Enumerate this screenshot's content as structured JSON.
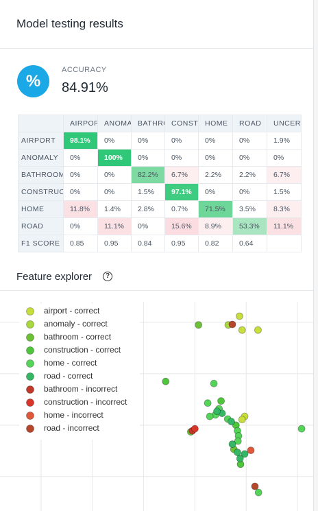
{
  "header": {
    "title": "Model testing results"
  },
  "accuracy": {
    "icon": "%",
    "label": "ACCURACY",
    "value": "84.91%"
  },
  "table": {
    "columns": [
      "AIRPORT",
      "ANOMALY",
      "BATHROOM",
      "CONSTRUCTION",
      "HOME",
      "ROAD",
      "UNCERTAIN"
    ],
    "rows": [
      {
        "label": "AIRPORT",
        "cells": [
          "98.1%",
          "0%",
          "0%",
          "0%",
          "0%",
          "0%",
          "1.9%"
        ]
      },
      {
        "label": "ANOMALY",
        "cells": [
          "0%",
          "100%",
          "0%",
          "0%",
          "0%",
          "0%",
          "0%"
        ]
      },
      {
        "label": "BATHROOM",
        "cells": [
          "0%",
          "0%",
          "82.2%",
          "6.7%",
          "2.2%",
          "2.2%",
          "6.7%"
        ]
      },
      {
        "label": "CONSTRUCTION",
        "cells": [
          "0%",
          "0%",
          "1.5%",
          "97.1%",
          "0%",
          "0%",
          "1.5%"
        ]
      },
      {
        "label": "HOME",
        "cells": [
          "11.8%",
          "1.4%",
          "2.8%",
          "0.7%",
          "71.5%",
          "3.5%",
          "8.3%"
        ]
      },
      {
        "label": "ROAD",
        "cells": [
          "0%",
          "11.1%",
          "0%",
          "15.6%",
          "8.9%",
          "53.3%",
          "11.1%"
        ]
      },
      {
        "label": "F1 SCORE",
        "cells": [
          "0.85",
          "0.95",
          "0.84",
          "0.95",
          "0.82",
          "0.64"
        ]
      }
    ]
  },
  "feature_explorer": {
    "title": "Feature explorer",
    "help_icon": "?"
  },
  "chart_data": {
    "type": "scatter",
    "xlim": [
      -0.8,
      5.4
    ],
    "ylim": [
      -0.67,
      3.6
    ],
    "xticks": [
      0,
      1,
      2,
      3,
      4,
      5
    ],
    "yticks": [
      0,
      1,
      2,
      3
    ],
    "grid": true,
    "series": [
      {
        "name": "airport - correct",
        "color": "#c8de3a",
        "x": [
          3.87,
          3.92,
          4.23,
          3.97,
          3.92
        ],
        "values": [
          3.12,
          2.85,
          2.85,
          1.17,
          1.11
        ]
      },
      {
        "name": "anomaly - correct",
        "color": "#a9d83c",
        "x": [
          3.65
        ],
        "values": [
          2.95
        ]
      },
      {
        "name": "bathroom - correct",
        "color": "#6cc234",
        "x": [
          3.07,
          3.76,
          2.92
        ],
        "values": [
          2.95,
          0.53,
          0.87
        ]
      },
      {
        "name": "construction - correct",
        "color": "#4fc53c",
        "x": [
          2.43,
          3.51,
          3.8,
          3.89
        ],
        "values": [
          1.85,
          1.47,
          1.0,
          0.24
        ]
      },
      {
        "name": "home - correct",
        "color": "#55d45a",
        "x": [
          3.37,
          3.25,
          3.47,
          3.4,
          3.29,
          3.64,
          3.83,
          3.85,
          3.84,
          5.08,
          4.24
        ],
        "values": [
          1.81,
          1.43,
          1.32,
          1.2,
          1.17,
          1.12,
          0.89,
          0.79,
          0.69,
          0.93,
          -0.31
        ]
      },
      {
        "name": "road - correct",
        "color": "#35b866",
        "x": [
          3.53,
          3.71,
          3.83,
          3.97,
          3.73,
          3.43,
          3.88
        ],
        "values": [
          1.23,
          1.07,
          0.47,
          0.44,
          0.63,
          1.27,
          0.35
        ]
      },
      {
        "name": "bathroom - incorrect",
        "color": "#c0392b",
        "x": [
          2.95
        ],
        "values": [
          0.89
        ]
      },
      {
        "name": "construction - incorrect",
        "color": "#d9362a",
        "x": [
          3.0
        ],
        "values": [
          0.93
        ]
      },
      {
        "name": "home - incorrect",
        "color": "#e0583a",
        "x": [
          4.09
        ],
        "values": [
          0.51
        ]
      },
      {
        "name": "road - incorrect",
        "color": "#b5472a",
        "x": [
          3.73,
          4.17
        ],
        "values": [
          2.96,
          -0.19
        ]
      }
    ]
  }
}
